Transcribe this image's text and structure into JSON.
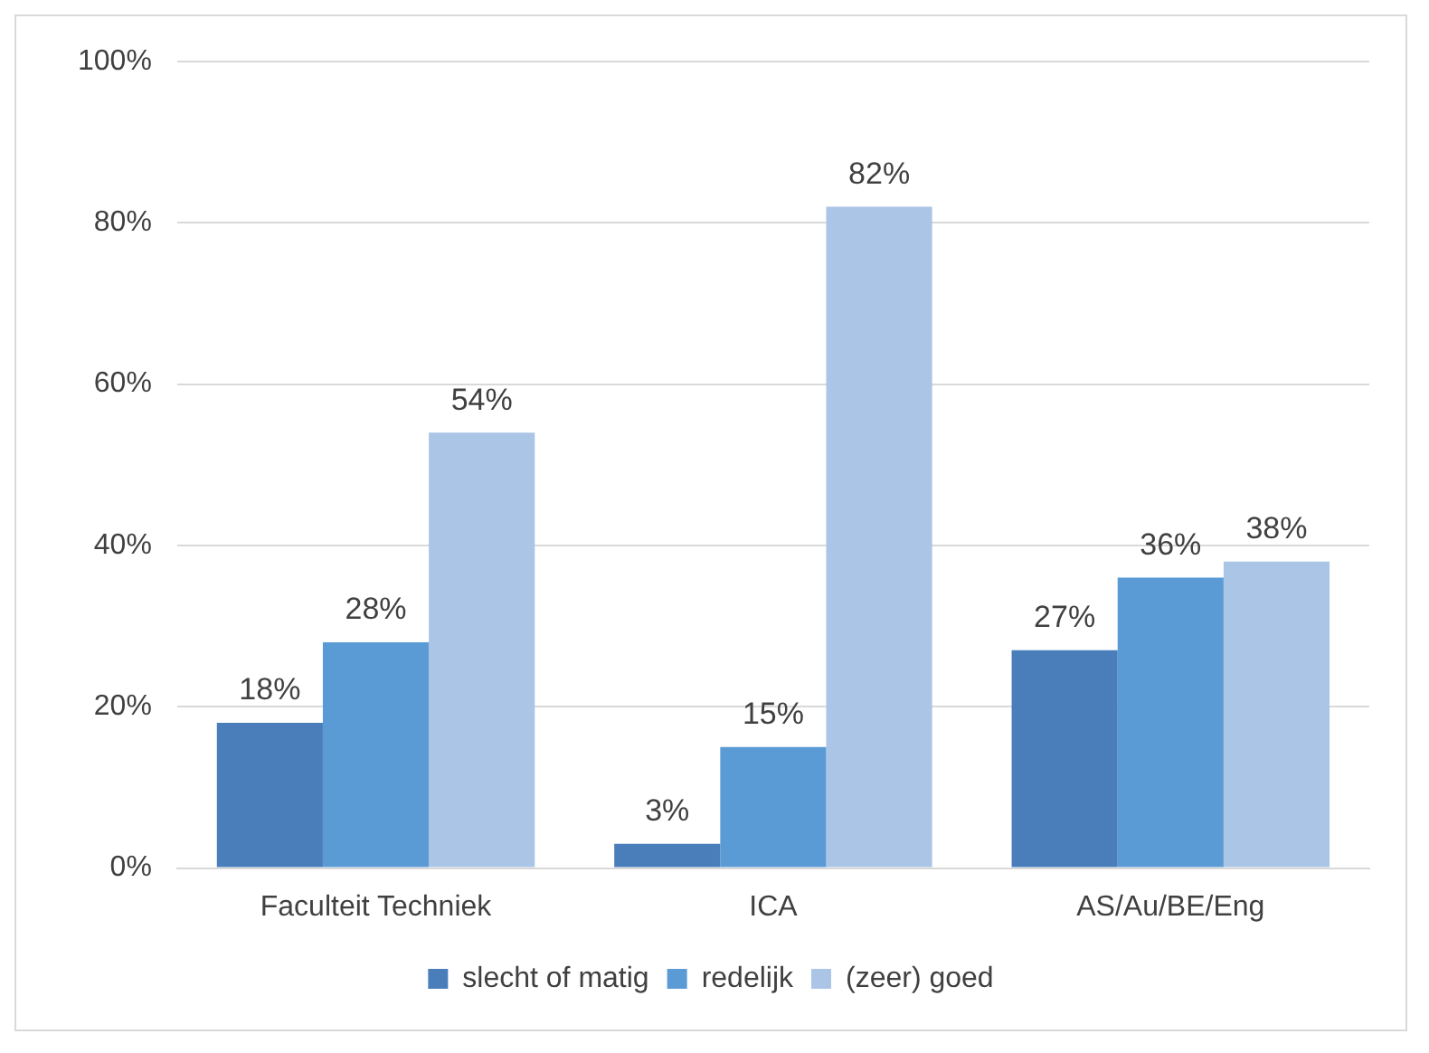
{
  "chart_data": {
    "type": "bar",
    "categories": [
      "Faculteit Techniek",
      "ICA",
      "AS/Au/BE/Eng"
    ],
    "series": [
      {
        "name": "slecht of matig",
        "color": "#4a7ebb",
        "values": [
          18,
          3,
          27
        ],
        "value_labels": [
          "18%",
          "3%",
          "27%"
        ]
      },
      {
        "name": "redelijk",
        "color": "#5b9bd5",
        "values": [
          28,
          15,
          36
        ],
        "value_labels": [
          "28%",
          "15%",
          "36%"
        ]
      },
      {
        "name": "(zeer) goed",
        "color": "#abc5e6",
        "values": [
          54,
          82,
          38
        ],
        "value_labels": [
          "54%",
          "82%",
          "38%"
        ]
      }
    ],
    "ylim": [
      0,
      100
    ],
    "yticks": [
      {
        "value": 0,
        "label": "0%"
      },
      {
        "value": 20,
        "label": "20%"
      },
      {
        "value": 40,
        "label": "40%"
      },
      {
        "value": 60,
        "label": "60%"
      },
      {
        "value": 80,
        "label": "80%"
      },
      {
        "value": 100,
        "label": "100%"
      }
    ],
    "grid": "y",
    "legend": "bottom"
  }
}
